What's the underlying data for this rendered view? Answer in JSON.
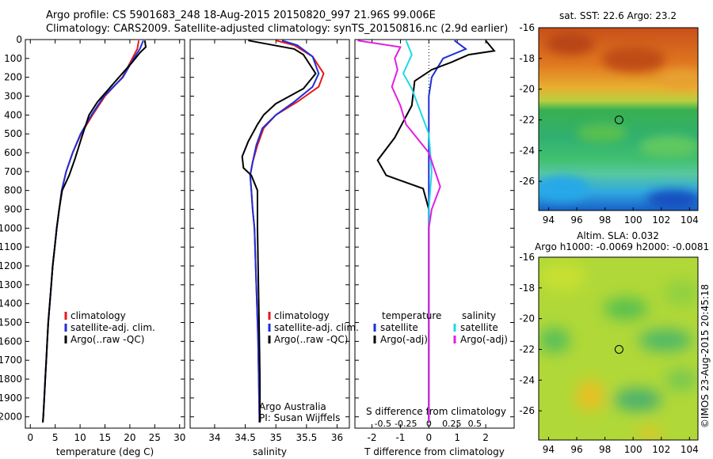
{
  "header": {
    "title_line1": "Argo profile: CS 5901683_248 18-Aug-2015 20150820_997 21.96S 99.006E",
    "title_line2": "Climatology: CARS2009. Satellite-adjusted climatology: synTS_20150816.nc (2.9d earlier)"
  },
  "colors": {
    "climatology": "#e8191a",
    "satellite": "#1f2fd6",
    "argo": "#000000",
    "argo_salinity": "#e020e0",
    "satellite_salinity": "#20d8e8"
  },
  "chart_data": [
    {
      "id": "temperature",
      "type": "line",
      "xlabel": "temperature (deg C)",
      "ylabel": "",
      "xlim": [
        -1,
        31
      ],
      "ylim": [
        2060,
        0
      ],
      "xticks": [
        "0",
        "5",
        "10",
        "15",
        "20",
        "25",
        "30"
      ],
      "yticks": [
        "0",
        "100",
        "200",
        "300",
        "400",
        "500",
        "600",
        "700",
        "800",
        "900",
        "1000",
        "1100",
        "1200",
        "1300",
        "1400",
        "1500",
        "1600",
        "1700",
        "1800",
        "1900",
        "2000"
      ],
      "legend": [
        "climatology",
        "satellite-adj. clim.",
        "Argo(..raw -QC)"
      ],
      "series": [
        {
          "name": "climatology",
          "color": "#e8191a",
          "points": [
            [
              21.8,
              5
            ],
            [
              21.5,
              50
            ],
            [
              20.5,
              100
            ],
            [
              18.5,
              200
            ],
            [
              15,
              300
            ],
            [
              12.5,
              400
            ],
            [
              10.2,
              500
            ],
            [
              8.5,
              600
            ],
            [
              7.2,
              700
            ],
            [
              6.3,
              800
            ],
            [
              5.8,
              900
            ],
            [
              5.3,
              1000
            ],
            [
              4.9,
              1100
            ],
            [
              4.5,
              1200
            ],
            [
              4.2,
              1300
            ],
            [
              3.9,
              1400
            ],
            [
              3.6,
              1500
            ],
            [
              3.4,
              1600
            ],
            [
              3.2,
              1700
            ],
            [
              3.0,
              1800
            ],
            [
              2.8,
              1900
            ],
            [
              2.6,
              2000
            ],
            [
              2.5,
              2030
            ]
          ]
        },
        {
          "name": "satellite-adj. clim.",
          "color": "#1f2fd6",
          "points": [
            [
              22.7,
              5
            ],
            [
              22.0,
              50
            ],
            [
              20.8,
              100
            ],
            [
              18.6,
              200
            ],
            [
              14.8,
              300
            ],
            [
              12.3,
              400
            ],
            [
              10.1,
              500
            ],
            [
              8.5,
              600
            ],
            [
              7.2,
              700
            ],
            [
              6.3,
              800
            ],
            [
              5.8,
              900
            ],
            [
              5.3,
              1000
            ],
            [
              4.9,
              1100
            ],
            [
              4.5,
              1200
            ],
            [
              4.2,
              1300
            ],
            [
              3.9,
              1400
            ],
            [
              3.6,
              1500
            ],
            [
              3.4,
              1600
            ],
            [
              3.2,
              1700
            ],
            [
              3.0,
              1800
            ],
            [
              2.8,
              1900
            ],
            [
              2.6,
              2000
            ],
            [
              2.5,
              2030
            ]
          ]
        },
        {
          "name": "Argo(..raw -QC)",
          "color": "#000000",
          "points": [
            [
              23.0,
              5
            ],
            [
              23.2,
              40
            ],
            [
              22.0,
              70
            ],
            [
              20.5,
              120
            ],
            [
              17.8,
              200
            ],
            [
              13.5,
              330
            ],
            [
              11.8,
              400
            ],
            [
              10.3,
              520
            ],
            [
              9.0,
              630
            ],
            [
              7.8,
              720
            ],
            [
              6.4,
              800
            ],
            [
              5.8,
              900
            ],
            [
              5.3,
              1000
            ],
            [
              4.9,
              1100
            ],
            [
              4.5,
              1200
            ],
            [
              4.2,
              1300
            ],
            [
              3.9,
              1400
            ],
            [
              3.6,
              1500
            ],
            [
              3.4,
              1600
            ],
            [
              3.2,
              1700
            ],
            [
              3.0,
              1800
            ],
            [
              2.8,
              1900
            ],
            [
              2.6,
              2000
            ],
            [
              2.5,
              2030
            ]
          ]
        }
      ]
    },
    {
      "id": "salinity",
      "type": "line",
      "xlabel": "salinity",
      "xlim": [
        33.6,
        36.2
      ],
      "ylim": [
        2060,
        0
      ],
      "xticks": [
        "34",
        "34.5",
        "35",
        "35.5",
        "36"
      ],
      "legend": [
        "climatology",
        "satellite-adj. clim.",
        "Argo(..raw -QC)"
      ],
      "annotation": [
        "Argo Australia",
        "PI: Susan Wijffels"
      ],
      "series": [
        {
          "name": "climatology",
          "color": "#e8191a",
          "points": [
            [
              35.0,
              5
            ],
            [
              35.3,
              30
            ],
            [
              35.6,
              90
            ],
            [
              35.78,
              180
            ],
            [
              35.7,
              250
            ],
            [
              35.35,
              330
            ],
            [
              35.0,
              400
            ],
            [
              34.8,
              470
            ],
            [
              34.7,
              560
            ],
            [
              34.62,
              650
            ],
            [
              34.58,
              720
            ],
            [
              34.6,
              800
            ],
            [
              34.62,
              900
            ],
            [
              34.65,
              1000
            ],
            [
              34.67,
              1200
            ],
            [
              34.69,
              1400
            ],
            [
              34.71,
              1600
            ],
            [
              34.72,
              1800
            ],
            [
              34.73,
              2000
            ],
            [
              34.73,
              2030
            ]
          ]
        },
        {
          "name": "satellite-adj. clim.",
          "color": "#1f2fd6",
          "points": [
            [
              35.1,
              5
            ],
            [
              35.35,
              30
            ],
            [
              35.6,
              90
            ],
            [
              35.7,
              180
            ],
            [
              35.6,
              250
            ],
            [
              35.3,
              330
            ],
            [
              35.0,
              400
            ],
            [
              34.78,
              470
            ],
            [
              34.68,
              560
            ],
            [
              34.62,
              650
            ],
            [
              34.58,
              720
            ],
            [
              34.6,
              800
            ],
            [
              34.62,
              900
            ],
            [
              34.65,
              1000
            ],
            [
              34.67,
              1200
            ],
            [
              34.69,
              1400
            ],
            [
              34.71,
              1600
            ],
            [
              34.72,
              1800
            ],
            [
              34.73,
              2000
            ],
            [
              34.73,
              2030
            ]
          ]
        },
        {
          "name": "Argo(..raw -QC)",
          "color": "#000000",
          "points": [
            [
              34.55,
              5
            ],
            [
              35.3,
              50
            ],
            [
              35.45,
              80
            ],
            [
              35.65,
              180
            ],
            [
              35.45,
              260
            ],
            [
              35.0,
              340
            ],
            [
              34.8,
              400
            ],
            [
              34.7,
              450
            ],
            [
              34.55,
              540
            ],
            [
              34.45,
              620
            ],
            [
              34.47,
              680
            ],
            [
              34.6,
              720
            ],
            [
              34.7,
              800
            ],
            [
              34.7,
              900
            ],
            [
              34.7,
              1000
            ],
            [
              34.71,
              1200
            ],
            [
              34.72,
              1400
            ],
            [
              34.73,
              1600
            ],
            [
              34.74,
              1800
            ],
            [
              34.74,
              2000
            ],
            [
              34.74,
              2030
            ]
          ]
        }
      ]
    },
    {
      "id": "difference",
      "type": "line",
      "xlabel": "T difference from climatology",
      "top_label": "S difference from climatology",
      "xlim": [
        -2.6,
        3.0
      ],
      "ylim": [
        2060,
        0
      ],
      "xticks": [
        "-2",
        "-1",
        "0",
        "1",
        "2"
      ],
      "sticks": [
        "-0.5",
        "-0.25",
        "0",
        "0.25",
        "0.5"
      ],
      "legend_t": [
        "temperature",
        "satellite",
        "Argo(-adj)"
      ],
      "legend_s": [
        "salinity",
        "satellite",
        "Argo(-adj)"
      ],
      "series": [
        {
          "name": "satellite",
          "color": "#1f2fd6",
          "points": [
            [
              0.9,
              5
            ],
            [
              1.3,
              50
            ],
            [
              0.5,
              100
            ],
            [
              0.1,
              200
            ],
            [
              0,
              300
            ],
            [
              0,
              400
            ],
            [
              0,
              600
            ],
            [
              0,
              800
            ],
            [
              0,
              1000
            ],
            [
              0,
              1500
            ],
            [
              0,
              2000
            ],
            [
              0,
              2030
            ]
          ]
        },
        {
          "name": "Argo(-adj)",
          "color": "#000000",
          "points": [
            [
              2.0,
              5
            ],
            [
              2.3,
              60
            ],
            [
              1.4,
              80
            ],
            [
              0.8,
              120
            ],
            [
              0.1,
              160
            ],
            [
              -0.5,
              220
            ],
            [
              -0.6,
              350
            ],
            [
              -1.2,
              520
            ],
            [
              -1.8,
              640
            ],
            [
              -1.5,
              720
            ],
            [
              -0.2,
              790
            ],
            [
              0,
              900
            ],
            [
              0,
              1000
            ],
            [
              0,
              1500
            ],
            [
              0,
              2000
            ],
            [
              0,
              2030
            ]
          ]
        },
        {
          "name": "salinity satellite",
          "color": "#20d8e8",
          "points": [
            [
              -0.8,
              5
            ],
            [
              -0.6,
              80
            ],
            [
              -0.9,
              180
            ],
            [
              -0.6,
              260
            ],
            [
              -0.3,
              380
            ],
            [
              0,
              500
            ],
            [
              0.1,
              700
            ],
            [
              0,
              900
            ],
            [
              0,
              1500
            ],
            [
              0,
              2030
            ]
          ]
        },
        {
          "name": "salinity Argo(-adj)",
          "color": "#e020e0",
          "points": [
            [
              -2.5,
              5
            ],
            [
              -1.0,
              40
            ],
            [
              -1.2,
              100
            ],
            [
              -1.1,
              160
            ],
            [
              -1.3,
              250
            ],
            [
              -1.0,
              350
            ],
            [
              -0.8,
              450
            ],
            [
              0,
              600
            ],
            [
              0.4,
              780
            ],
            [
              0.1,
              900
            ],
            [
              0,
              1000
            ],
            [
              0,
              1500
            ],
            [
              0,
              2030
            ]
          ]
        }
      ]
    },
    {
      "id": "sst-map",
      "type": "heatmap",
      "title": "sat. SST: 22.6 Argo: 23.2",
      "xlim": [
        93.3,
        104.6
      ],
      "ylim": [
        -27.9,
        -16
      ],
      "xticks": [
        "94",
        "96",
        "98",
        "100",
        "102",
        "104"
      ],
      "yticks": [
        "-16",
        "-18",
        "-20",
        "-22",
        "-24",
        "-26"
      ],
      "marker": [
        99.0,
        -22.0
      ]
    },
    {
      "id": "sla-map",
      "type": "heatmap",
      "title": "Altim. SLA: 0.032",
      "subtitle": "Argo h1000: -0.0069 h2000: -0.0081",
      "xlim": [
        93.3,
        104.6
      ],
      "ylim": [
        -27.9,
        -16
      ],
      "xticks": [
        "94",
        "96",
        "98",
        "100",
        "102",
        "104"
      ],
      "yticks": [
        "-16",
        "-18",
        "-20",
        "-22",
        "-24",
        "-26"
      ],
      "marker": [
        99.0,
        -22.0
      ]
    }
  ],
  "footer": {
    "credit": "©IMOS 23-Aug-2015 20:45:18"
  }
}
